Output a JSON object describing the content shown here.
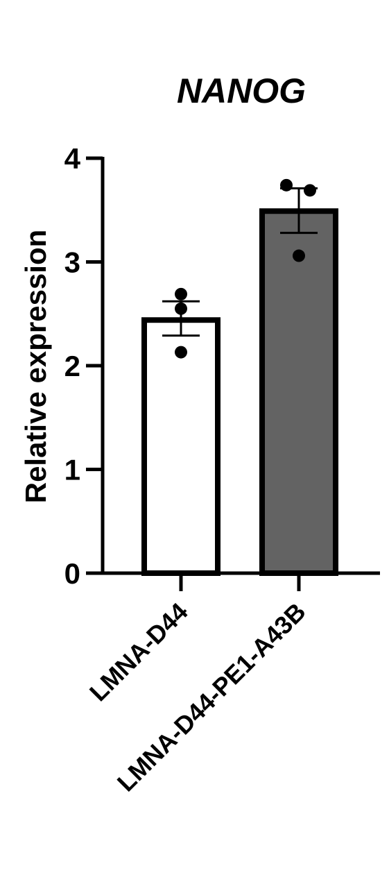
{
  "chart_data": {
    "type": "bar",
    "title": "NANOG",
    "ylabel": "Relative expression",
    "xlabel": "",
    "ylim": [
      0,
      4
    ],
    "yticks": [
      0,
      1,
      2,
      3,
      4
    ],
    "categories": [
      "LMNA-D44",
      "LMNA-D44-PE1-A43B"
    ],
    "values": [
      2.44,
      3.49
    ],
    "error_bars": [
      {
        "low": 2.29,
        "high": 2.62
      },
      {
        "low": 3.28,
        "high": 3.71
      }
    ],
    "points": [
      [
        2.69,
        2.55,
        2.13
      ],
      [
        3.74,
        3.69,
        3.06
      ]
    ],
    "colors": {
      "bar_fill": [
        "#ffffff",
        "#636363"
      ],
      "bar_stroke": "#000000",
      "axis": "#000000",
      "point": "#000000"
    },
    "grid": false,
    "legend": "none"
  }
}
